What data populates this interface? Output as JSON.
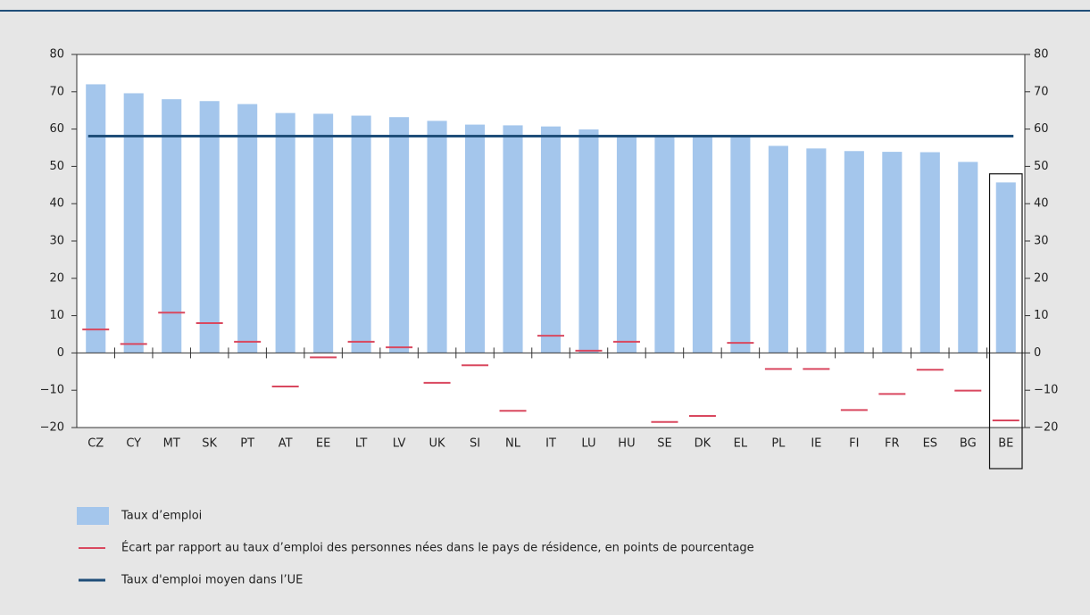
{
  "chart_data": {
    "type": "bar",
    "categories": [
      "CZ",
      "CY",
      "MT",
      "SK",
      "PT",
      "AT",
      "EE",
      "LT",
      "LV",
      "UK",
      "SI",
      "NL",
      "IT",
      "LU",
      "HU",
      "SE",
      "DK",
      "EL",
      "PL",
      "IE",
      "FI",
      "FR",
      "ES",
      "BG",
      "BE"
    ],
    "series": [
      {
        "name": "Taux d’emploi",
        "color": "#a4c6ec",
        "kind": "bar",
        "values": [
          72,
          69.6,
          68,
          67.5,
          66.7,
          64.3,
          64.1,
          63.6,
          63.2,
          62.2,
          61.2,
          61,
          60.7,
          59.9,
          58.3,
          58.3,
          58.2,
          58.2,
          55.5,
          54.8,
          54.1,
          53.9,
          53.8,
          51.2,
          45.7
        ]
      },
      {
        "name": "Écart par rapport au taux d’emploi des personnes nées dans le pays de résidence, en points de pourcentage",
        "color": "#d9485f",
        "kind": "marker",
        "values": [
          6.3,
          2.4,
          10.8,
          8,
          3,
          -9,
          -1.2,
          3,
          1.5,
          -8,
          -3.3,
          -15.5,
          4.6,
          0.6,
          3,
          -18.5,
          -16.9,
          2.7,
          -4.3,
          -4.3,
          -15.3,
          -11,
          -4.5,
          -10.1,
          -18.1
        ]
      },
      {
        "name": "Taux d'emploi moyen dans l’UE",
        "color": "#1f4e79",
        "kind": "hline",
        "value": 58.1
      }
    ],
    "ylim": [
      -20,
      80
    ],
    "yticks": [
      {
        "value": -20,
        "label": "−20"
      },
      {
        "value": -10,
        "label": "−10"
      },
      0,
      10,
      20,
      30,
      40,
      50,
      60,
      70,
      80
    ],
    "y2lim": [
      -20,
      80
    ],
    "y2ticks": [
      {
        "value": -20,
        "label": "−20"
      },
      {
        "value": -10,
        "label": "−10"
      },
      0,
      10,
      20,
      30,
      40,
      50,
      60,
      70,
      80
    ]
  }
}
